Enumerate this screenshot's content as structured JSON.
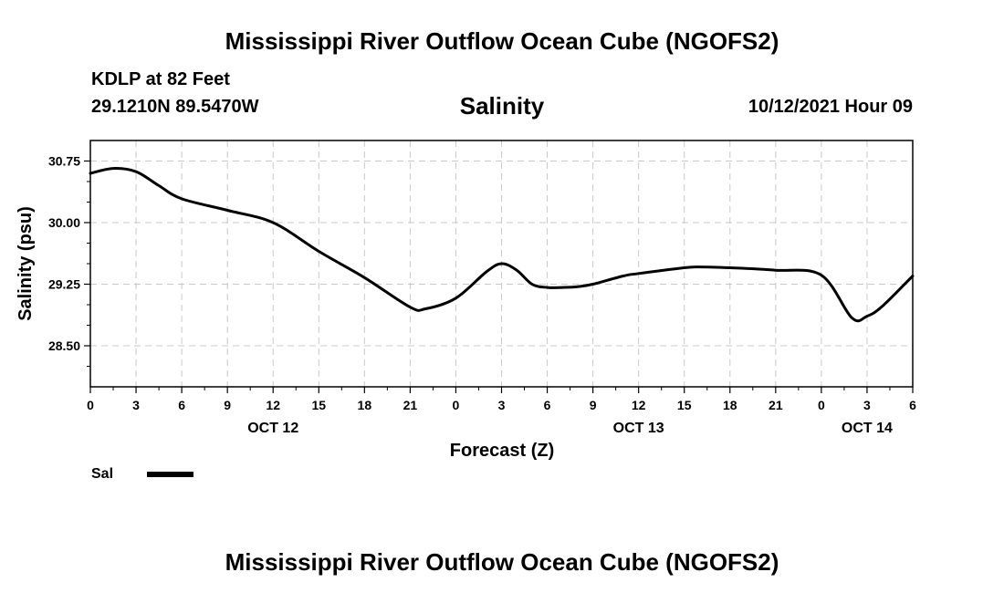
{
  "header": {
    "title": "Mississippi River Outflow Ocean Cube (NGOFS2)",
    "station": "KDLP at 82 Feet",
    "coords": "29.1210N  89.5470W",
    "variable": "Salinity",
    "datetime": "10/12/2021 Hour 09"
  },
  "footer": {
    "title": "Mississippi River Outflow Ocean Cube (NGOFS2)"
  },
  "legend": {
    "label": "Sal",
    "color": "#000000"
  },
  "chart_data": {
    "type": "line",
    "title": "Salinity",
    "xlabel": "Forecast (Z)",
    "ylabel": "Salinity (psu)",
    "xlim": [
      0,
      54
    ],
    "ylim": [
      28.0,
      31.0
    ],
    "grid": true,
    "x_tick_hours": [
      0,
      3,
      6,
      9,
      12,
      15,
      18,
      21,
      24,
      27,
      30,
      33,
      36,
      39,
      42,
      45,
      48,
      51,
      54
    ],
    "x_tick_labels": [
      "0",
      "3",
      "6",
      "9",
      "12",
      "15",
      "18",
      "21",
      "0",
      "3",
      "6",
      "9",
      "12",
      "15",
      "18",
      "21",
      "0",
      "3",
      "6"
    ],
    "date_labels": [
      {
        "label": "OCT 12",
        "hour": 12
      },
      {
        "label": "OCT 13",
        "hour": 36
      },
      {
        "label": "OCT 14",
        "hour": 51
      }
    ],
    "y_ticks": [
      28.5,
      29.25,
      30.0,
      30.75
    ],
    "y_tick_labels": [
      "28.50",
      "29.25",
      "30.00",
      "30.75"
    ],
    "series": [
      {
        "name": "Sal",
        "x": [
          0,
          1.5,
          3,
          4.5,
          6,
          9,
          12,
          15,
          18,
          21,
          22,
          24,
          26,
          27,
          28,
          29,
          30,
          31,
          32,
          33,
          35,
          36,
          39,
          40,
          42,
          45,
          48,
          50,
          51,
          52,
          54
        ],
        "y": [
          30.6,
          30.66,
          30.62,
          30.45,
          30.29,
          30.15,
          30.0,
          29.65,
          29.33,
          28.97,
          28.95,
          29.08,
          29.4,
          29.5,
          29.42,
          29.25,
          29.21,
          29.21,
          29.22,
          29.25,
          29.35,
          29.38,
          29.45,
          29.46,
          29.45,
          29.42,
          29.36,
          28.84,
          28.86,
          28.98,
          29.35
        ]
      }
    ]
  }
}
